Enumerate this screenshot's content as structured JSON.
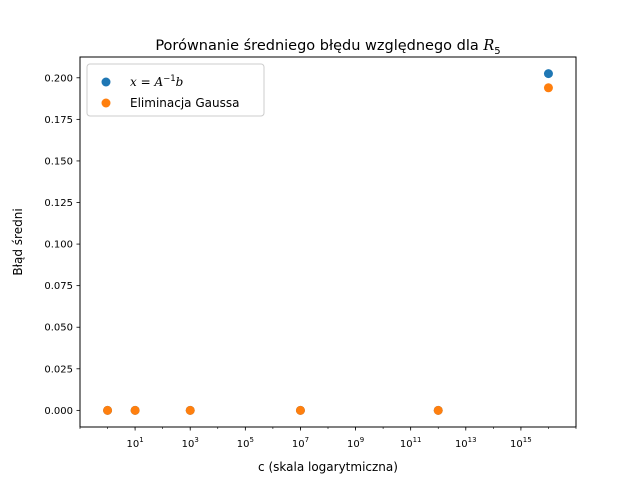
{
  "chart_data": {
    "type": "scatter",
    "title_prefix": "Porównanie średniego błędu względnego dla ",
    "title_math_main": "R",
    "title_math_sub": "5",
    "xlabel": "c (skala logarytmiczna)",
    "ylabel": "Błąd średni",
    "xscale": "log",
    "xlim": [
      0.1,
      1e+17
    ],
    "ylim": [
      -0.01,
      0.2125
    ],
    "grid": false,
    "legend_position": "top-left",
    "x_ticks": [
      {
        "base": "10",
        "exp": "1",
        "value": 10
      },
      {
        "base": "10",
        "exp": "3",
        "value": 1000
      },
      {
        "base": "10",
        "exp": "5",
        "value": 100000
      },
      {
        "base": "10",
        "exp": "7",
        "value": 10000000
      },
      {
        "base": "10",
        "exp": "9",
        "value": 1000000000
      },
      {
        "base": "10",
        "exp": "11",
        "value": 100000000000
      },
      {
        "base": "10",
        "exp": "13",
        "value": 10000000000000
      },
      {
        "base": "10",
        "exp": "15",
        "value": 1000000000000000
      }
    ],
    "y_ticks": [
      "0.000",
      "0.025",
      "0.050",
      "0.075",
      "0.100",
      "0.125",
      "0.150",
      "0.175",
      "0.200"
    ],
    "series": [
      {
        "name": "x = A^{-1}b",
        "color": "#1f77b4",
        "points": [
          {
            "x": 1,
            "y": 0.0
          },
          {
            "x": 10,
            "y": 0.0
          },
          {
            "x": 1000,
            "y": 0.0
          },
          {
            "x": 10000000,
            "y": 0.0
          },
          {
            "x": 1000000000000,
            "y": 0.0
          },
          {
            "x": 10000000000000000,
            "y": 0.2025
          }
        ]
      },
      {
        "name": "Eliminacja Gaussa",
        "color": "#ff7f0e",
        "points": [
          {
            "x": 1,
            "y": 0.0
          },
          {
            "x": 10,
            "y": 0.0
          },
          {
            "x": 1000,
            "y": 0.0
          },
          {
            "x": 10000000,
            "y": 0.0
          },
          {
            "x": 1000000000000,
            "y": 0.0
          },
          {
            "x": 10000000000000000,
            "y": 0.194
          }
        ]
      }
    ]
  }
}
